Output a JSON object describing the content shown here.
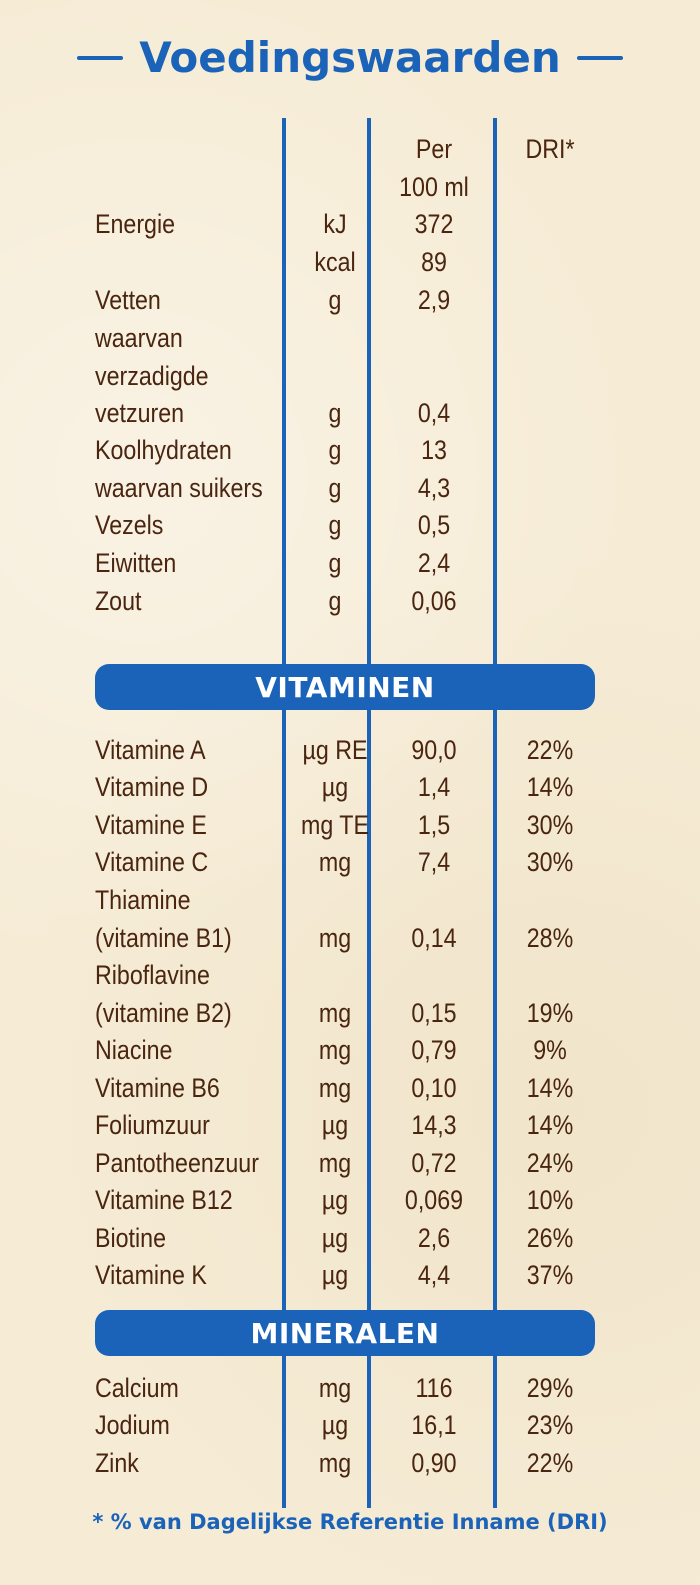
{
  "title": "Voedingswaarden",
  "header": {
    "per": "Per",
    "per_unit": "100 ml",
    "dri": "DRI*"
  },
  "nutrition": {
    "energie": {
      "label": "Energie",
      "unit_kj": "kJ",
      "value_kj": "372",
      "unit_kcal": "kcal",
      "value_kcal": "89"
    },
    "vetten": {
      "label": "Vetten",
      "unit": "g",
      "value": "2,9"
    },
    "verzadigd": {
      "label_1": "waarvan",
      "label_2": "verzadigde",
      "label_3": "vetzuren",
      "unit": "g",
      "value": "0,4"
    },
    "koolhydraten": {
      "label": "Koolhydraten",
      "unit": "g",
      "value": "13"
    },
    "suikers": {
      "label": "waarvan suikers",
      "unit": "g",
      "value": "4,3"
    },
    "vezels": {
      "label": "Vezels",
      "unit": "g",
      "value": "0,5"
    },
    "eiwitten": {
      "label": "Eiwitten",
      "unit": "g",
      "value": "2,4"
    },
    "zout": {
      "label": "Zout",
      "unit": "g",
      "value": "0,06"
    }
  },
  "vitamins_title": "VITAMINEN",
  "vitamins": {
    "a": {
      "label": "Vitamine A",
      "unit": "µg RE",
      "value": "90,0",
      "dri": "22%"
    },
    "d": {
      "label": "Vitamine D",
      "unit": "µg",
      "value": "1,4",
      "dri": "14%"
    },
    "e": {
      "label": "Vitamine E",
      "unit": "mg TE",
      "value": "1,5",
      "dri": "30%"
    },
    "c": {
      "label": "Vitamine C",
      "unit": "mg",
      "value": "7,4",
      "dri": "30%"
    },
    "b1": {
      "label_1": "Thiamine",
      "label_2": "(vitamine B1)",
      "unit": "mg",
      "value": "0,14",
      "dri": "28%"
    },
    "b2": {
      "label_1": "Riboflavine",
      "label_2": "(vitamine B2)",
      "unit": "mg",
      "value": "0,15",
      "dri": "19%"
    },
    "niacine": {
      "label": "Niacine",
      "unit": "mg",
      "value": "0,79",
      "dri": "9%"
    },
    "b6": {
      "label": "Vitamine B6",
      "unit": "mg",
      "value": "0,10",
      "dri": "14%"
    },
    "folium": {
      "label": "Foliumzuur",
      "unit": "µg",
      "value": "14,3",
      "dri": "14%"
    },
    "panto": {
      "label": "Pantotheenzuur",
      "unit": "mg",
      "value": "0,72",
      "dri": "24%"
    },
    "b12": {
      "label": "Vitamine B12",
      "unit": "µg",
      "value": "0,069",
      "dri": "10%"
    },
    "biotine": {
      "label": "Biotine",
      "unit": "µg",
      "value": "2,6",
      "dri": "26%"
    },
    "k": {
      "label": "Vitamine K",
      "unit": "µg",
      "value": "4,4",
      "dri": "37%"
    }
  },
  "minerals_title": "MINERALEN",
  "minerals": {
    "calcium": {
      "label": "Calcium",
      "unit": "mg",
      "value": "116",
      "dri": "29%"
    },
    "jodium": {
      "label": "Jodium",
      "unit": "µg",
      "value": "16,1",
      "dri": "23%"
    },
    "zink": {
      "label": "Zink",
      "unit": "mg",
      "value": "0,90",
      "dri": "22%"
    }
  },
  "footnote": "* % van Dagelijkse Referentie Inname (DRI)",
  "colors": {
    "blue": "#1a63b8",
    "text": "#4a2510",
    "background": "#f6ecd6"
  }
}
